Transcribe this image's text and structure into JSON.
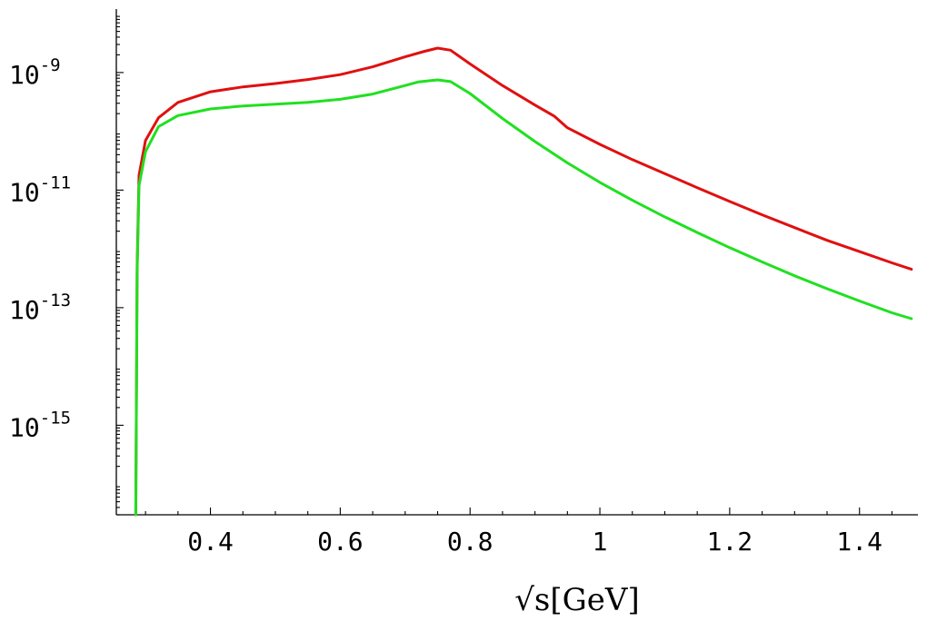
{
  "chart_data": {
    "type": "line",
    "title": "",
    "xlabel": "√s[GeV]",
    "ylabel": "",
    "xlim": [
      0.255,
      1.49
    ],
    "ylim": [
      3e-17,
      1.2e-08
    ],
    "y_scale": "log",
    "grid": false,
    "legend": "none",
    "x_ticks": [
      {
        "value": 0.4,
        "label": "0.4"
      },
      {
        "value": 0.6,
        "label": "0.6"
      },
      {
        "value": 0.8,
        "label": "0.8"
      },
      {
        "value": 1.0,
        "label": "1"
      },
      {
        "value": 1.2,
        "label": "1.2"
      },
      {
        "value": 1.4,
        "label": "1.4"
      }
    ],
    "y_ticks": [
      {
        "value": 1e-09,
        "base": "10",
        "exponent": "-9"
      },
      {
        "value": 1e-11,
        "base": "10",
        "exponent": "-11"
      },
      {
        "value": 1e-13,
        "base": "10",
        "exponent": "-13"
      },
      {
        "value": 1e-15,
        "base": "10",
        "exponent": "-15"
      }
    ],
    "series": [
      {
        "color": "#e01010",
        "points": [
          [
            0.285,
            3e-17
          ],
          [
            0.287,
            5e-13
          ],
          [
            0.29,
            1.8e-11
          ],
          [
            0.3,
            7e-11
          ],
          [
            0.32,
            1.7e-10
          ],
          [
            0.35,
            3.1e-10
          ],
          [
            0.4,
            4.7e-10
          ],
          [
            0.45,
            5.7e-10
          ],
          [
            0.5,
            6.5e-10
          ],
          [
            0.55,
            7.6e-10
          ],
          [
            0.6,
            9.2e-10
          ],
          [
            0.65,
            1.25e-09
          ],
          [
            0.7,
            1.85e-09
          ],
          [
            0.73,
            2.3e-09
          ],
          [
            0.75,
            2.6e-09
          ],
          [
            0.77,
            2.4e-09
          ],
          [
            0.8,
            1.4e-09
          ],
          [
            0.85,
            6e-10
          ],
          [
            0.9,
            2.8e-10
          ],
          [
            0.93,
            1.8e-10
          ],
          [
            0.95,
            1.15e-10
          ],
          [
            1.0,
            6e-11
          ],
          [
            1.05,
            3.3e-11
          ],
          [
            1.1,
            1.9e-11
          ],
          [
            1.15,
            1.1e-11
          ],
          [
            1.2,
            6.4e-12
          ],
          [
            1.25,
            3.8e-12
          ],
          [
            1.3,
            2.3e-12
          ],
          [
            1.35,
            1.4e-12
          ],
          [
            1.4,
            9e-13
          ],
          [
            1.45,
            5.8e-13
          ],
          [
            1.48,
            4.5e-13
          ]
        ]
      },
      {
        "color": "#20e020",
        "points": [
          [
            0.285,
            3e-17
          ],
          [
            0.287,
            4e-13
          ],
          [
            0.29,
            1.2e-11
          ],
          [
            0.3,
            4.5e-11
          ],
          [
            0.32,
            1.2e-10
          ],
          [
            0.35,
            1.85e-10
          ],
          [
            0.4,
            2.4e-10
          ],
          [
            0.45,
            2.7e-10
          ],
          [
            0.5,
            2.9e-10
          ],
          [
            0.55,
            3.1e-10
          ],
          [
            0.6,
            3.5e-10
          ],
          [
            0.65,
            4.3e-10
          ],
          [
            0.7,
            6e-10
          ],
          [
            0.72,
            6.9e-10
          ],
          [
            0.75,
            7.5e-10
          ],
          [
            0.77,
            7e-10
          ],
          [
            0.8,
            4.4e-10
          ],
          [
            0.85,
            1.65e-10
          ],
          [
            0.9,
            6.7e-11
          ],
          [
            0.95,
            2.9e-11
          ],
          [
            1.0,
            1.35e-11
          ],
          [
            1.05,
            6.7e-12
          ],
          [
            1.1,
            3.5e-12
          ],
          [
            1.15,
            1.9e-12
          ],
          [
            1.2,
            1.05e-12
          ],
          [
            1.25,
            6e-13
          ],
          [
            1.3,
            3.5e-13
          ],
          [
            1.35,
            2.1e-13
          ],
          [
            1.4,
            1.3e-13
          ],
          [
            1.45,
            8.2e-14
          ],
          [
            1.48,
            6.5e-14
          ]
        ]
      }
    ]
  }
}
